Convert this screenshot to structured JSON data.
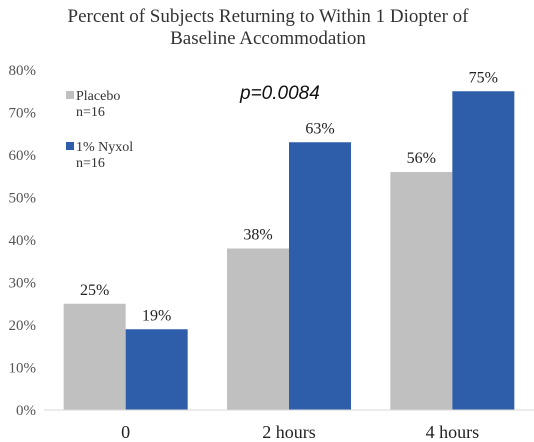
{
  "chart_data": {
    "type": "bar",
    "title_line1": "Percent of Subjects Returning to Within 1 Diopter of",
    "title_line2": "Baseline Accommodation",
    "categories": [
      "0",
      "2 hours",
      "4 hours"
    ],
    "series": [
      {
        "name": "Placebo",
        "n_label": "n=16",
        "color": "#bfc0bf",
        "values": [
          25,
          38,
          56
        ],
        "labels": [
          "25%",
          "38%",
          "56%"
        ]
      },
      {
        "name": "1% Nyxol",
        "n_label": "n=16",
        "color": "#2e5eaa",
        "values": [
          19,
          63,
          75
        ],
        "labels": [
          "19%",
          "63%",
          "75%"
        ]
      }
    ],
    "y_ticks": [
      "0%",
      "10%",
      "20%",
      "30%",
      "40%",
      "50%",
      "60%",
      "70%",
      "80%"
    ],
    "ylim": [
      0,
      80
    ],
    "annotation": "p=0.0084",
    "grid": false,
    "legend_position": "top-left"
  }
}
